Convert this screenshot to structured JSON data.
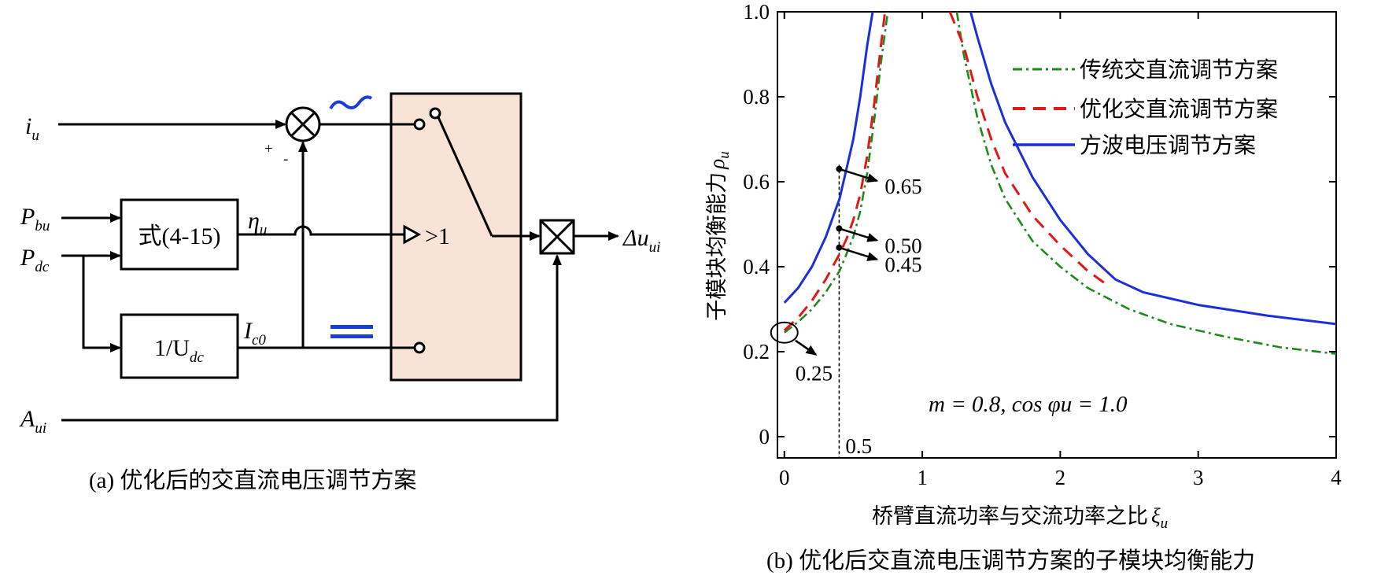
{
  "diagram": {
    "signals": {
      "iu": "i",
      "iu_sub": "u",
      "pbu": "P",
      "pbu_sub": "bu",
      "pdc": "P",
      "pdc_sub": "dc",
      "aui": "A",
      "aui_sub": "ui",
      "eta": "η",
      "eta_sub": "u",
      "ic0": "I",
      "ic0_sub": "c0",
      "out": "Δu",
      "out_sub": "ui"
    },
    "blocks": {
      "formula": "式(4-15)",
      "inv_udc": "1/U",
      "inv_udc_sub": "dc"
    },
    "comparator": ">1",
    "sum_signs": {
      "plus": "+",
      "minus": "-"
    },
    "ac_symbol": "~",
    "dc_symbol": "=",
    "colors": {
      "switch_box": "#f8e3d6",
      "accent": "#1a3fd6"
    },
    "caption": "(a) 优化后的交直流电压调节方案"
  },
  "chart_data": {
    "type": "line",
    "xlabel": "桥臂直流功率与交流功率之比",
    "xlabel_symbol": "ξ",
    "xlabel_sub": "u",
    "ylabel": "子模块均衡能力",
    "ylabel_symbol": "ρ",
    "ylabel_sub": "u",
    "xlim": [
      -0.05,
      4
    ],
    "ylim": [
      -0.05,
      1.0
    ],
    "x_ticks": [
      "0",
      "1",
      "2",
      "3",
      "4"
    ],
    "y_ticks": [
      "0",
      "0.2",
      "0.4",
      "0.6",
      "0.8",
      "1.0"
    ],
    "annotation": "m = 0.8, cos φu = 1.0",
    "marker_line_x": 0.5,
    "marker_line_label": "0.5",
    "point_labels": [
      {
        "text": "0.65",
        "x": 0.45,
        "y": 0.63
      },
      {
        "text": "0.50",
        "x": 0.45,
        "y": 0.49
      },
      {
        "text": "0.45",
        "x": 0.45,
        "y": 0.445
      },
      {
        "text": "0.25",
        "x": 0.0,
        "y": 0.245
      }
    ],
    "series": [
      {
        "name": "传统交直流调节方案",
        "color": "#1e8a1e",
        "style": "dash-dot",
        "points": [
          [
            0,
            0.245
          ],
          [
            0.1,
            0.27
          ],
          [
            0.2,
            0.3
          ],
          [
            0.3,
            0.34
          ],
          [
            0.4,
            0.39
          ],
          [
            0.45,
            0.43
          ],
          [
            0.5,
            0.47
          ],
          [
            0.55,
            0.53
          ],
          [
            0.6,
            0.62
          ],
          [
            0.65,
            0.74
          ],
          [
            0.7,
            0.88
          ],
          [
            0.75,
            1.0
          ],
          null,
          [
            1.25,
            1.0
          ],
          [
            1.3,
            0.9
          ],
          [
            1.4,
            0.75
          ],
          [
            1.5,
            0.64
          ],
          [
            1.6,
            0.56
          ],
          [
            1.8,
            0.46
          ],
          [
            2.0,
            0.4
          ],
          [
            2.2,
            0.35
          ],
          [
            2.5,
            0.3
          ],
          [
            2.8,
            0.265
          ],
          [
            3.2,
            0.235
          ],
          [
            3.6,
            0.21
          ],
          [
            4.0,
            0.195
          ]
        ]
      },
      {
        "name": "优化交直流调节方案",
        "color": "#e01818",
        "style": "dash",
        "points": [
          [
            0,
            0.25
          ],
          [
            0.1,
            0.28
          ],
          [
            0.2,
            0.32
          ],
          [
            0.3,
            0.37
          ],
          [
            0.4,
            0.43
          ],
          [
            0.45,
            0.465
          ],
          [
            0.5,
            0.51
          ],
          [
            0.55,
            0.57
          ],
          [
            0.6,
            0.66
          ],
          [
            0.65,
            0.78
          ],
          [
            0.7,
            0.92
          ],
          [
            0.73,
            1.0
          ],
          null,
          [
            1.2,
            1.0
          ],
          [
            1.3,
            0.92
          ],
          [
            1.4,
            0.8
          ],
          [
            1.5,
            0.7
          ],
          [
            1.6,
            0.62
          ],
          [
            1.8,
            0.52
          ],
          [
            2.0,
            0.45
          ],
          [
            2.2,
            0.39
          ],
          [
            2.35,
            0.355
          ]
        ]
      },
      {
        "name": "方波电压调节方案",
        "color": "#1c2fd8",
        "style": "solid",
        "points": [
          [
            0,
            0.315
          ],
          [
            0.1,
            0.35
          ],
          [
            0.2,
            0.4
          ],
          [
            0.3,
            0.47
          ],
          [
            0.4,
            0.56
          ],
          [
            0.45,
            0.63
          ],
          [
            0.5,
            0.7
          ],
          [
            0.55,
            0.8
          ],
          [
            0.6,
            0.92
          ],
          [
            0.64,
            1.0
          ],
          null,
          [
            1.35,
            1.0
          ],
          [
            1.4,
            0.94
          ],
          [
            1.5,
            0.83
          ],
          [
            1.6,
            0.74
          ],
          [
            1.8,
            0.61
          ],
          [
            2.0,
            0.51
          ],
          [
            2.2,
            0.43
          ],
          [
            2.4,
            0.37
          ],
          [
            2.6,
            0.34
          ],
          [
            2.8,
            0.325
          ],
          [
            3.0,
            0.31
          ],
          [
            3.2,
            0.3
          ],
          [
            3.5,
            0.285
          ],
          [
            4.0,
            0.265
          ]
        ]
      }
    ],
    "legend_position": "top-right",
    "caption": "(b) 优化后交直流电压调节方案的子模块均衡能力"
  }
}
